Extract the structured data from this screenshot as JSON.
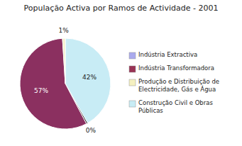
{
  "chart_data": {
    "type": "pie",
    "title": "População Activa por Ramos de Actividade - 2001",
    "values": [
      42,
      0.5,
      57,
      1
    ],
    "value_labels": [
      "42%",
      "0%",
      "57%",
      "1%"
    ],
    "colors": [
      "#c8ecf5",
      "#111111",
      "#8b3060",
      "#f5f0c8"
    ],
    "data_labels": true,
    "legend": "right",
    "series": [
      {
        "name": "Indústria Extractiva",
        "color": "#aaaaee"
      },
      {
        "name": "Indústria Transformadora",
        "color": "#993355"
      },
      {
        "name": "Produção e Distribuição de\nElectricidade, Gás e Água",
        "color": "#f5f0c0"
      },
      {
        "name": "Construção Civil e Obras\nPúblicas",
        "color": "#c8ecf5"
      }
    ]
  }
}
